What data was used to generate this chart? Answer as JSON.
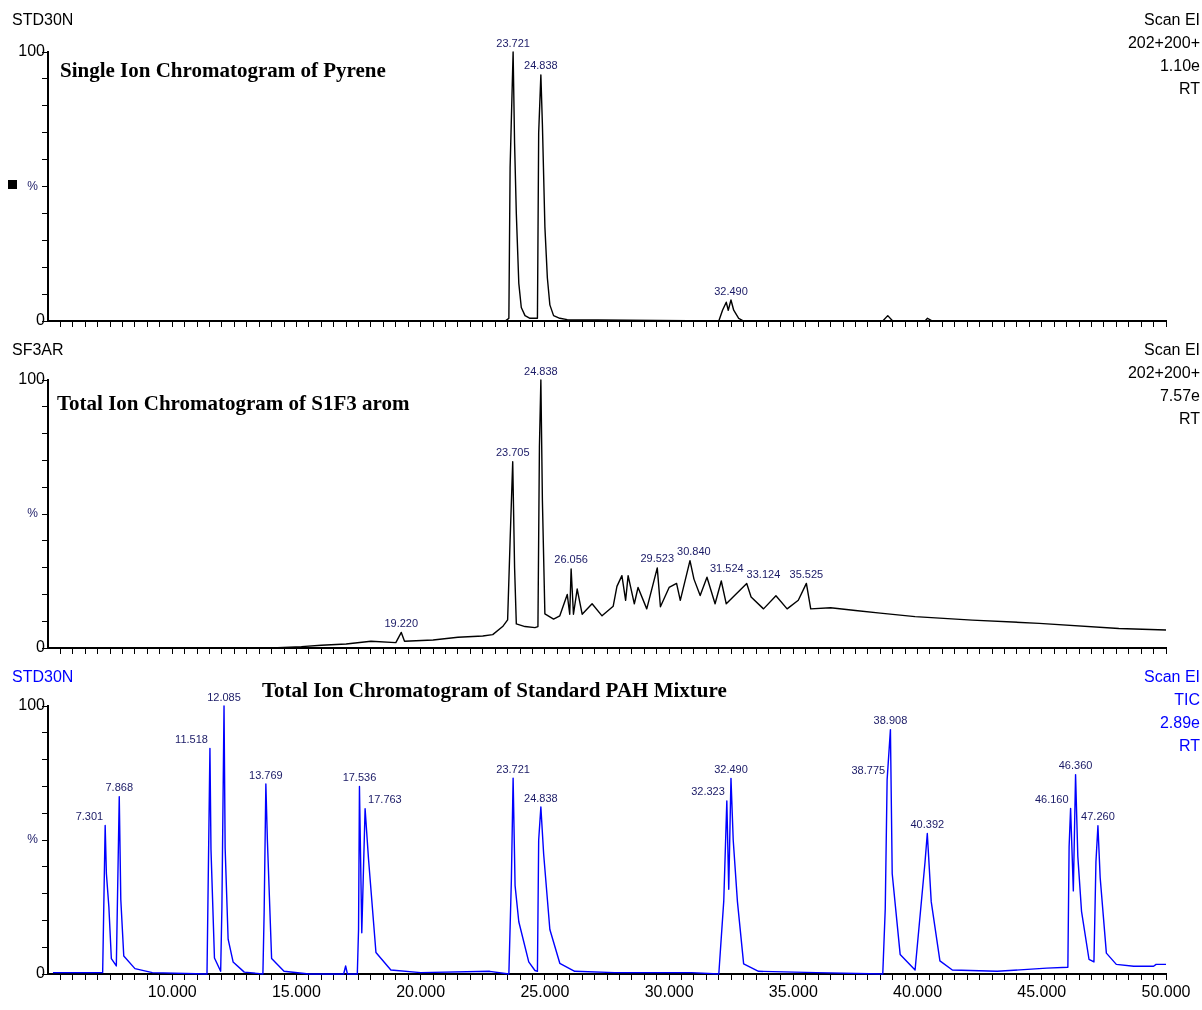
{
  "chart_data": [
    {
      "type": "line",
      "title": "Single Ion Chromatogram of Pyrene",
      "ylabel": "%",
      "color": "#000000",
      "tick_labels": "y",
      "annotations": [
        "STD30N",
        "Scan EI",
        "202+200+",
        "1.10e",
        "RT",
        {
          "text": "23.721",
          "x": 23.721,
          "y": 100
        },
        {
          "text": "24.838",
          "x": 24.838,
          "y": 91.5
        },
        {
          "text": "32.490",
          "x": 32.49,
          "y": 7.8
        }
      ],
      "xlim": [
        5,
        50
      ],
      "ylim": [
        0,
        100
      ],
      "yticks": [
        {
          "value": 0,
          "label": "0"
        },
        {
          "value": 10,
          "label": null
        },
        {
          "value": 20,
          "label": null
        },
        {
          "value": 30,
          "label": null
        },
        {
          "value": 40,
          "label": null
        },
        {
          "value": 50,
          "label": null
        },
        {
          "value": 60,
          "label": null
        },
        {
          "value": 70,
          "label": null
        },
        {
          "value": 80,
          "label": null
        },
        {
          "value": 90,
          "label": null
        },
        {
          "value": 100,
          "label": "100"
        }
      ],
      "xticks": [
        {
          "value": 5.5,
          "label": null
        },
        {
          "value": 6,
          "label": null
        },
        {
          "value": 6.5,
          "label": null
        },
        {
          "value": 7,
          "label": null
        },
        {
          "value": 7.5,
          "label": null
        },
        {
          "value": 8,
          "label": null
        },
        {
          "value": 8.5,
          "label": null
        },
        {
          "value": 9,
          "label": null
        },
        {
          "value": 9.5,
          "label": null
        },
        {
          "value": 10,
          "label": null
        },
        {
          "value": 10.5,
          "label": null
        },
        {
          "value": 11,
          "label": null
        },
        {
          "value": 11.5,
          "label": null
        },
        {
          "value": 12,
          "label": null
        },
        {
          "value": 12.5,
          "label": null
        },
        {
          "value": 13,
          "label": null
        },
        {
          "value": 13.5,
          "label": null
        },
        {
          "value": 14,
          "label": null
        },
        {
          "value": 14.5,
          "label": null
        },
        {
          "value": 15,
          "label": null
        },
        {
          "value": 15.5,
          "label": null
        },
        {
          "value": 16,
          "label": null
        },
        {
          "value": 16.5,
          "label": null
        },
        {
          "value": 17,
          "label": null
        },
        {
          "value": 17.5,
          "label": null
        },
        {
          "value": 18,
          "label": null
        },
        {
          "value": 18.5,
          "label": null
        },
        {
          "value": 19,
          "label": null
        },
        {
          "value": 19.5,
          "label": null
        },
        {
          "value": 20,
          "label": null
        },
        {
          "value": 20.5,
          "label": null
        },
        {
          "value": 21,
          "label": null
        },
        {
          "value": 21.5,
          "label": null
        },
        {
          "value": 22,
          "label": null
        },
        {
          "value": 22.5,
          "label": null
        },
        {
          "value": 23,
          "label": null
        },
        {
          "value": 23.5,
          "label": null
        },
        {
          "value": 24,
          "label": null
        },
        {
          "value": 24.5,
          "label": null
        },
        {
          "value": 25,
          "label": null
        },
        {
          "value": 25.5,
          "label": null
        },
        {
          "value": 26,
          "label": null
        },
        {
          "value": 26.5,
          "label": null
        },
        {
          "value": 27,
          "label": null
        },
        {
          "value": 27.5,
          "label": null
        },
        {
          "value": 28,
          "label": null
        },
        {
          "value": 28.5,
          "label": null
        },
        {
          "value": 29,
          "label": null
        },
        {
          "value": 29.5,
          "label": null
        },
        {
          "value": 30,
          "label": null
        },
        {
          "value": 30.5,
          "label": null
        },
        {
          "value": 31,
          "label": null
        },
        {
          "value": 31.5,
          "label": null
        },
        {
          "value": 32,
          "label": null
        },
        {
          "value": 32.5,
          "label": null
        },
        {
          "value": 33,
          "label": null
        },
        {
          "value": 33.5,
          "label": null
        },
        {
          "value": 34,
          "label": null
        },
        {
          "value": 34.5,
          "label": null
        },
        {
          "value": 35,
          "label": null
        },
        {
          "value": 35.5,
          "label": null
        },
        {
          "value": 36,
          "label": null
        },
        {
          "value": 36.5,
          "label": null
        },
        {
          "value": 37,
          "label": null
        },
        {
          "value": 37.5,
          "label": null
        },
        {
          "value": 38,
          "label": null
        },
        {
          "value": 38.5,
          "label": null
        },
        {
          "value": 39,
          "label": null
        },
        {
          "value": 39.5,
          "label": null
        },
        {
          "value": 40,
          "label": null
        },
        {
          "value": 40.5,
          "label": null
        },
        {
          "value": 41,
          "label": null
        },
        {
          "value": 41.5,
          "label": null
        },
        {
          "value": 42,
          "label": null
        },
        {
          "value": 42.5,
          "label": null
        },
        {
          "value": 43,
          "label": null
        },
        {
          "value": 43.5,
          "label": null
        },
        {
          "value": 44,
          "label": null
        },
        {
          "value": 44.5,
          "label": null
        },
        {
          "value": 45,
          "label": null
        },
        {
          "value": 45.5,
          "label": null
        },
        {
          "value": 46,
          "label": null
        },
        {
          "value": 46.5,
          "label": null
        },
        {
          "value": 47,
          "label": null
        },
        {
          "value": 47.5,
          "label": null
        },
        {
          "value": 48,
          "label": null
        },
        {
          "value": 48.5,
          "label": null
        },
        {
          "value": 49,
          "label": null
        },
        {
          "value": 49.5,
          "label": null
        },
        {
          "value": 50,
          "label": null
        }
      ],
      "x": [
        5.2,
        23.4,
        23.55,
        23.6,
        23.721,
        23.78,
        23.85,
        23.95,
        24.05,
        24.2,
        24.4,
        24.7,
        24.75,
        24.838,
        24.9,
        25.0,
        25.1,
        25.2,
        25.35,
        25.6,
        25.9,
        32.0,
        32.15,
        32.3,
        32.38,
        32.49,
        32.6,
        32.8,
        33.0,
        38.6,
        38.8,
        39.0,
        40.3,
        40.4,
        40.6,
        50
      ],
      "values": [
        0,
        0,
        1,
        57,
        100,
        66,
        40,
        14,
        5,
        2,
        1,
        1,
        70,
        91.5,
        73,
        35,
        16,
        6,
        2,
        1,
        0.5,
        0,
        4,
        7,
        4,
        7.8,
        4,
        1,
        0,
        0,
        2,
        0,
        0,
        1,
        0,
        0
      ]
    },
    {
      "type": "line",
      "title": "Total Ion Chromatogram of S1F3 arom",
      "ylabel": "%",
      "color": "#000000",
      "tick_labels": "y",
      "annotations": [
        "SF3AR",
        "Scan EI",
        "202+200+",
        "7.57e",
        "RT",
        {
          "text": "19.220",
          "x": 19.22,
          "y": 5.8
        },
        {
          "text": "23.705",
          "x": 23.705,
          "y": 69.5
        },
        {
          "text": "24.838",
          "x": 24.838,
          "y": 100
        },
        {
          "text": "26.056",
          "x": 26.056,
          "y": 29.5
        },
        {
          "text": "29.523",
          "x": 29.523,
          "y": 29.9
        },
        {
          "text": "30.840",
          "x": 30.84,
          "y": 32.6
        },
        {
          "text": "31.524",
          "x": 31.524,
          "y": 26.4
        },
        {
          "text": "33.124",
          "x": 33.124,
          "y": 24.1
        },
        {
          "text": "35.525",
          "x": 35.525,
          "y": 24.1
        }
      ],
      "xlim": [
        5,
        50
      ],
      "ylim": [
        0,
        100
      ],
      "yticks": [
        {
          "value": 0,
          "label": "0"
        },
        {
          "value": 10,
          "label": null
        },
        {
          "value": 20,
          "label": null
        },
        {
          "value": 30,
          "label": null
        },
        {
          "value": 40,
          "label": null
        },
        {
          "value": 50,
          "label": null
        },
        {
          "value": 60,
          "label": null
        },
        {
          "value": 70,
          "label": null
        },
        {
          "value": 80,
          "label": null
        },
        {
          "value": 90,
          "label": null
        },
        {
          "value": 100,
          "label": "100"
        }
      ],
      "xticks": [
        {
          "value": 5.5,
          "label": null
        },
        {
          "value": 6,
          "label": null
        },
        {
          "value": 6.5,
          "label": null
        },
        {
          "value": 7,
          "label": null
        },
        {
          "value": 7.5,
          "label": null
        },
        {
          "value": 8,
          "label": null
        },
        {
          "value": 8.5,
          "label": null
        },
        {
          "value": 9,
          "label": null
        },
        {
          "value": 9.5,
          "label": null
        },
        {
          "value": 10,
          "label": null
        },
        {
          "value": 10.5,
          "label": null
        },
        {
          "value": 11,
          "label": null
        },
        {
          "value": 11.5,
          "label": null
        },
        {
          "value": 12,
          "label": null
        },
        {
          "value": 12.5,
          "label": null
        },
        {
          "value": 13,
          "label": null
        },
        {
          "value": 13.5,
          "label": null
        },
        {
          "value": 14,
          "label": null
        },
        {
          "value": 14.5,
          "label": null
        },
        {
          "value": 15,
          "label": null
        },
        {
          "value": 15.5,
          "label": null
        },
        {
          "value": 16,
          "label": null
        },
        {
          "value": 16.5,
          "label": null
        },
        {
          "value": 17,
          "label": null
        },
        {
          "value": 17.5,
          "label": null
        },
        {
          "value": 18,
          "label": null
        },
        {
          "value": 18.5,
          "label": null
        },
        {
          "value": 19,
          "label": null
        },
        {
          "value": 19.5,
          "label": null
        },
        {
          "value": 20,
          "label": null
        },
        {
          "value": 20.5,
          "label": null
        },
        {
          "value": 21,
          "label": null
        },
        {
          "value": 21.5,
          "label": null
        },
        {
          "value": 22,
          "label": null
        },
        {
          "value": 22.5,
          "label": null
        },
        {
          "value": 23,
          "label": null
        },
        {
          "value": 23.5,
          "label": null
        },
        {
          "value": 24,
          "label": null
        },
        {
          "value": 24.5,
          "label": null
        },
        {
          "value": 25,
          "label": null
        },
        {
          "value": 25.5,
          "label": null
        },
        {
          "value": 26,
          "label": null
        },
        {
          "value": 26.5,
          "label": null
        },
        {
          "value": 27,
          "label": null
        },
        {
          "value": 27.5,
          "label": null
        },
        {
          "value": 28,
          "label": null
        },
        {
          "value": 28.5,
          "label": null
        },
        {
          "value": 29,
          "label": null
        },
        {
          "value": 29.5,
          "label": null
        },
        {
          "value": 30,
          "label": null
        },
        {
          "value": 30.5,
          "label": null
        },
        {
          "value": 31,
          "label": null
        },
        {
          "value": 31.5,
          "label": null
        },
        {
          "value": 32,
          "label": null
        },
        {
          "value": 32.5,
          "label": null
        },
        {
          "value": 33,
          "label": null
        },
        {
          "value": 33.5,
          "label": null
        },
        {
          "value": 34,
          "label": null
        },
        {
          "value": 34.5,
          "label": null
        },
        {
          "value": 35,
          "label": null
        },
        {
          "value": 35.5,
          "label": null
        },
        {
          "value": 36,
          "label": null
        },
        {
          "value": 36.5,
          "label": null
        },
        {
          "value": 37,
          "label": null
        },
        {
          "value": 37.5,
          "label": null
        },
        {
          "value": 38,
          "label": null
        },
        {
          "value": 38.5,
          "label": null
        },
        {
          "value": 39,
          "label": null
        },
        {
          "value": 39.5,
          "label": null
        },
        {
          "value": 40,
          "label": null
        },
        {
          "value": 40.5,
          "label": null
        },
        {
          "value": 41,
          "label": null
        },
        {
          "value": 41.5,
          "label": null
        },
        {
          "value": 42,
          "label": null
        },
        {
          "value": 42.5,
          "label": null
        },
        {
          "value": 43,
          "label": null
        },
        {
          "value": 43.5,
          "label": null
        },
        {
          "value": 44,
          "label": null
        },
        {
          "value": 44.5,
          "label": null
        },
        {
          "value": 45,
          "label": null
        },
        {
          "value": 45.5,
          "label": null
        },
        {
          "value": 46,
          "label": null
        },
        {
          "value": 46.5,
          "label": null
        },
        {
          "value": 47,
          "label": null
        },
        {
          "value": 47.5,
          "label": null
        },
        {
          "value": 48,
          "label": null
        },
        {
          "value": 48.5,
          "label": null
        },
        {
          "value": 49,
          "label": null
        },
        {
          "value": 49.5,
          "label": null
        },
        {
          "value": 50,
          "label": null
        }
      ],
      "x": [
        5.2,
        14,
        15.2,
        16,
        17,
        18,
        19,
        19.22,
        19.35,
        20.5,
        21.5,
        22.5,
        22.9,
        23.3,
        23.5,
        23.6,
        23.705,
        23.78,
        23.85,
        24.2,
        24.6,
        24.72,
        24.78,
        24.838,
        24.9,
        25.0,
        25.35,
        25.6,
        25.9,
        26.0,
        26.056,
        26.15,
        26.3,
        26.5,
        26.9,
        27.3,
        27.75,
        27.9,
        28.1,
        28.25,
        28.35,
        28.6,
        28.75,
        29.1,
        29.523,
        29.65,
        30.0,
        30.3,
        30.45,
        30.84,
        31.0,
        31.25,
        31.524,
        31.85,
        32.1,
        32.3,
        33.124,
        33.3,
        33.8,
        34.3,
        34.75,
        35.2,
        35.525,
        35.7,
        36.5,
        37.5,
        38.5,
        39.9,
        42.2,
        44.9,
        48.1,
        50
      ],
      "values": [
        0,
        0,
        0.5,
        1,
        1.5,
        2.5,
        2,
        5.8,
        2.5,
        3,
        4,
        4.5,
        5,
        8,
        10.5,
        40,
        69.5,
        30,
        9,
        8,
        7.6,
        8,
        75,
        100,
        55,
        12.7,
        10.8,
        12,
        20,
        12.6,
        29.5,
        12.6,
        22,
        12.6,
        16.5,
        12,
        15.6,
        23,
        27,
        17.8,
        27,
        16.5,
        22.6,
        14.6,
        29.9,
        15.4,
        22.6,
        24.1,
        17.8,
        32.6,
        25.7,
        19.6,
        26.4,
        16.5,
        25,
        16.5,
        24.1,
        19,
        14.6,
        19.5,
        14.6,
        17.8,
        24.1,
        14.6,
        15,
        14,
        13,
        11.7,
        10.4,
        9.2,
        7.3,
        6.7
      ]
    },
    {
      "type": "line",
      "title": "Total Ion Chromatogram of Standard PAH Mixture",
      "ylabel": "%",
      "color": "#0000ff",
      "annotations": [
        "STD30N",
        "Scan EI",
        "TIC",
        "2.89e",
        "RT",
        {
          "text": "7.301",
          "x": 7.301,
          "y": 55.4
        },
        {
          "text": "7.868",
          "x": 7.868,
          "y": 66.2
        },
        {
          "text": "11.518",
          "x": 11.518,
          "y": 84.2
        },
        {
          "text": "12.085",
          "x": 12.085,
          "y": 100
        },
        {
          "text": "13.769",
          "x": 13.769,
          "y": 70.9
        },
        {
          "text": "17.536",
          "x": 17.536,
          "y": 70
        },
        {
          "text": "17.763",
          "x": 17.763,
          "y": 61.7
        },
        {
          "text": "23.721",
          "x": 23.721,
          "y": 73.1
        },
        {
          "text": "24.838",
          "x": 24.838,
          "y": 62.3
        },
        {
          "text": "32.323",
          "x": 32.323,
          "y": 64.6
        },
        {
          "text": "32.490",
          "x": 32.49,
          "y": 73
        },
        {
          "text": "38.775",
          "x": 38.775,
          "y": 72.5
        },
        {
          "text": "38.908",
          "x": 38.908,
          "y": 91.2
        },
        {
          "text": "40.392",
          "x": 40.392,
          "y": 52.4
        },
        {
          "text": "46.160",
          "x": 46.16,
          "y": 61.8
        },
        {
          "text": "46.360",
          "x": 46.36,
          "y": 74.4
        },
        {
          "text": "47.260",
          "x": 47.26,
          "y": 55.3
        }
      ],
      "xlim": [
        5,
        50
      ],
      "ylim": [
        0,
        100
      ],
      "yticks": [
        {
          "value": 0,
          "label": "0"
        },
        {
          "value": 10,
          "label": null
        },
        {
          "value": 20,
          "label": null
        },
        {
          "value": 30,
          "label": null
        },
        {
          "value": 40,
          "label": null
        },
        {
          "value": 50,
          "label": null
        },
        {
          "value": 60,
          "label": null
        },
        {
          "value": 70,
          "label": null
        },
        {
          "value": 80,
          "label": null
        },
        {
          "value": 90,
          "label": null
        },
        {
          "value": 100,
          "label": "100"
        }
      ],
      "xticks": [
        {
          "value": 5.5,
          "label": null
        },
        {
          "value": 6,
          "label": null
        },
        {
          "value": 6.5,
          "label": null
        },
        {
          "value": 7,
          "label": null
        },
        {
          "value": 7.5,
          "label": null
        },
        {
          "value": 8,
          "label": null
        },
        {
          "value": 8.5,
          "label": null
        },
        {
          "value": 9,
          "label": null
        },
        {
          "value": 9.5,
          "label": null
        },
        {
          "value": 10,
          "label": "10.000"
        },
        {
          "value": 10.5,
          "label": null
        },
        {
          "value": 11,
          "label": null
        },
        {
          "value": 11.5,
          "label": null
        },
        {
          "value": 12,
          "label": null
        },
        {
          "value": 12.5,
          "label": null
        },
        {
          "value": 13,
          "label": null
        },
        {
          "value": 13.5,
          "label": null
        },
        {
          "value": 14,
          "label": null
        },
        {
          "value": 14.5,
          "label": null
        },
        {
          "value": 15,
          "label": "15.000"
        },
        {
          "value": 15.5,
          "label": null
        },
        {
          "value": 16,
          "label": null
        },
        {
          "value": 16.5,
          "label": null
        },
        {
          "value": 17,
          "label": null
        },
        {
          "value": 17.5,
          "label": null
        },
        {
          "value": 18,
          "label": null
        },
        {
          "value": 18.5,
          "label": null
        },
        {
          "value": 19,
          "label": null
        },
        {
          "value": 19.5,
          "label": null
        },
        {
          "value": 20,
          "label": "20.000"
        },
        {
          "value": 20.5,
          "label": null
        },
        {
          "value": 21,
          "label": null
        },
        {
          "value": 21.5,
          "label": null
        },
        {
          "value": 22,
          "label": null
        },
        {
          "value": 22.5,
          "label": null
        },
        {
          "value": 23,
          "label": null
        },
        {
          "value": 23.5,
          "label": null
        },
        {
          "value": 24,
          "label": null
        },
        {
          "value": 24.5,
          "label": null
        },
        {
          "value": 25,
          "label": "25.000"
        },
        {
          "value": 25.5,
          "label": null
        },
        {
          "value": 26,
          "label": null
        },
        {
          "value": 26.5,
          "label": null
        },
        {
          "value": 27,
          "label": null
        },
        {
          "value": 27.5,
          "label": null
        },
        {
          "value": 28,
          "label": null
        },
        {
          "value": 28.5,
          "label": null
        },
        {
          "value": 29,
          "label": null
        },
        {
          "value": 29.5,
          "label": null
        },
        {
          "value": 30,
          "label": "30.000"
        },
        {
          "value": 30.5,
          "label": null
        },
        {
          "value": 31,
          "label": null
        },
        {
          "value": 31.5,
          "label": null
        },
        {
          "value": 32,
          "label": null
        },
        {
          "value": 32.5,
          "label": null
        },
        {
          "value": 33,
          "label": null
        },
        {
          "value": 33.5,
          "label": null
        },
        {
          "value": 34,
          "label": null
        },
        {
          "value": 34.5,
          "label": null
        },
        {
          "value": 35,
          "label": "35.000"
        },
        {
          "value": 35.5,
          "label": null
        },
        {
          "value": 36,
          "label": null
        },
        {
          "value": 36.5,
          "label": null
        },
        {
          "value": 37,
          "label": null
        },
        {
          "value": 37.5,
          "label": null
        },
        {
          "value": 38,
          "label": null
        },
        {
          "value": 38.5,
          "label": null
        },
        {
          "value": 39,
          "label": null
        },
        {
          "value": 39.5,
          "label": null
        },
        {
          "value": 40,
          "label": "40.000"
        },
        {
          "value": 40.5,
          "label": null
        },
        {
          "value": 41,
          "label": null
        },
        {
          "value": 41.5,
          "label": null
        },
        {
          "value": 42,
          "label": null
        },
        {
          "value": 42.5,
          "label": null
        },
        {
          "value": 43,
          "label": null
        },
        {
          "value": 43.5,
          "label": null
        },
        {
          "value": 44,
          "label": null
        },
        {
          "value": 44.5,
          "label": null
        },
        {
          "value": 45,
          "label": "45.000"
        },
        {
          "value": 45.5,
          "label": null
        },
        {
          "value": 46,
          "label": null
        },
        {
          "value": 46.5,
          "label": null
        },
        {
          "value": 47,
          "label": null
        },
        {
          "value": 47.5,
          "label": null
        },
        {
          "value": 48,
          "label": null
        },
        {
          "value": 48.5,
          "label": null
        },
        {
          "value": 49,
          "label": null
        },
        {
          "value": 49.5,
          "label": null
        },
        {
          "value": 50,
          "label": "50.000"
        }
      ],
      "x": [
        5.2,
        7.2,
        7.301,
        7.35,
        7.45,
        7.55,
        7.75,
        7.868,
        7.93,
        8.05,
        8.5,
        9.2,
        11.4,
        11.518,
        11.56,
        11.7,
        11.95,
        12.0,
        12.085,
        12.13,
        12.25,
        12.45,
        12.9,
        13.65,
        13.7,
        13.769,
        13.83,
        14.0,
        14.5,
        15.5,
        16.9,
        16.98,
        17.05,
        17.45,
        17.5,
        17.536,
        17.63,
        17.763,
        17.9,
        18.2,
        18.8,
        20,
        22.78,
        23.55,
        23.65,
        23.721,
        23.8,
        23.95,
        24.35,
        24.6,
        24.7,
        24.75,
        24.838,
        24.95,
        25.2,
        25.6,
        26.2,
        27.8,
        30.9,
        32.0,
        32.2,
        32.323,
        32.4,
        32.49,
        32.58,
        32.75,
        33.0,
        33.6,
        35.93,
        38.6,
        38.7,
        38.775,
        38.908,
        38.98,
        39.3,
        39.9,
        40.3,
        40.392,
        40.55,
        40.9,
        41.4,
        43.2,
        45.2,
        46.05,
        46.1,
        46.16,
        46.27,
        46.36,
        46.45,
        46.6,
        46.9,
        47.1,
        47.18,
        47.26,
        47.35,
        47.6,
        48.0,
        48.7,
        49.5,
        49.6,
        50
      ],
      "values": [
        0.5,
        0.5,
        55.4,
        37.5,
        25,
        5.7,
        3,
        66.2,
        27.8,
        6.7,
        2,
        0.5,
        0,
        84.2,
        46.5,
        6,
        1,
        25,
        100,
        47,
        13,
        4.5,
        0.7,
        0,
        23,
        70.9,
        50,
        5.8,
        1,
        0,
        0,
        3,
        0,
        0,
        16.8,
        70,
        15.4,
        61.7,
        43,
        8,
        1.5,
        0.5,
        1,
        0,
        34.7,
        73.1,
        33,
        19.5,
        4.5,
        1.3,
        1,
        50,
        62.3,
        44.8,
        16.6,
        4,
        1,
        0.5,
        0.5,
        0,
        27.3,
        64.6,
        31.6,
        73,
        50,
        27,
        3.8,
        1,
        0.5,
        0,
        24.4,
        72.5,
        91.2,
        37.4,
        7.3,
        1.5,
        41.7,
        52.4,
        27,
        4.9,
        1.5,
        1,
        2.2,
        2.5,
        47.4,
        61.8,
        31,
        74.4,
        44,
        23.4,
        5.5,
        4.5,
        41.8,
        55.3,
        36,
        7.8,
        3.6,
        2.9,
        2.9,
        3.6,
        3.6
      ]
    }
  ]
}
